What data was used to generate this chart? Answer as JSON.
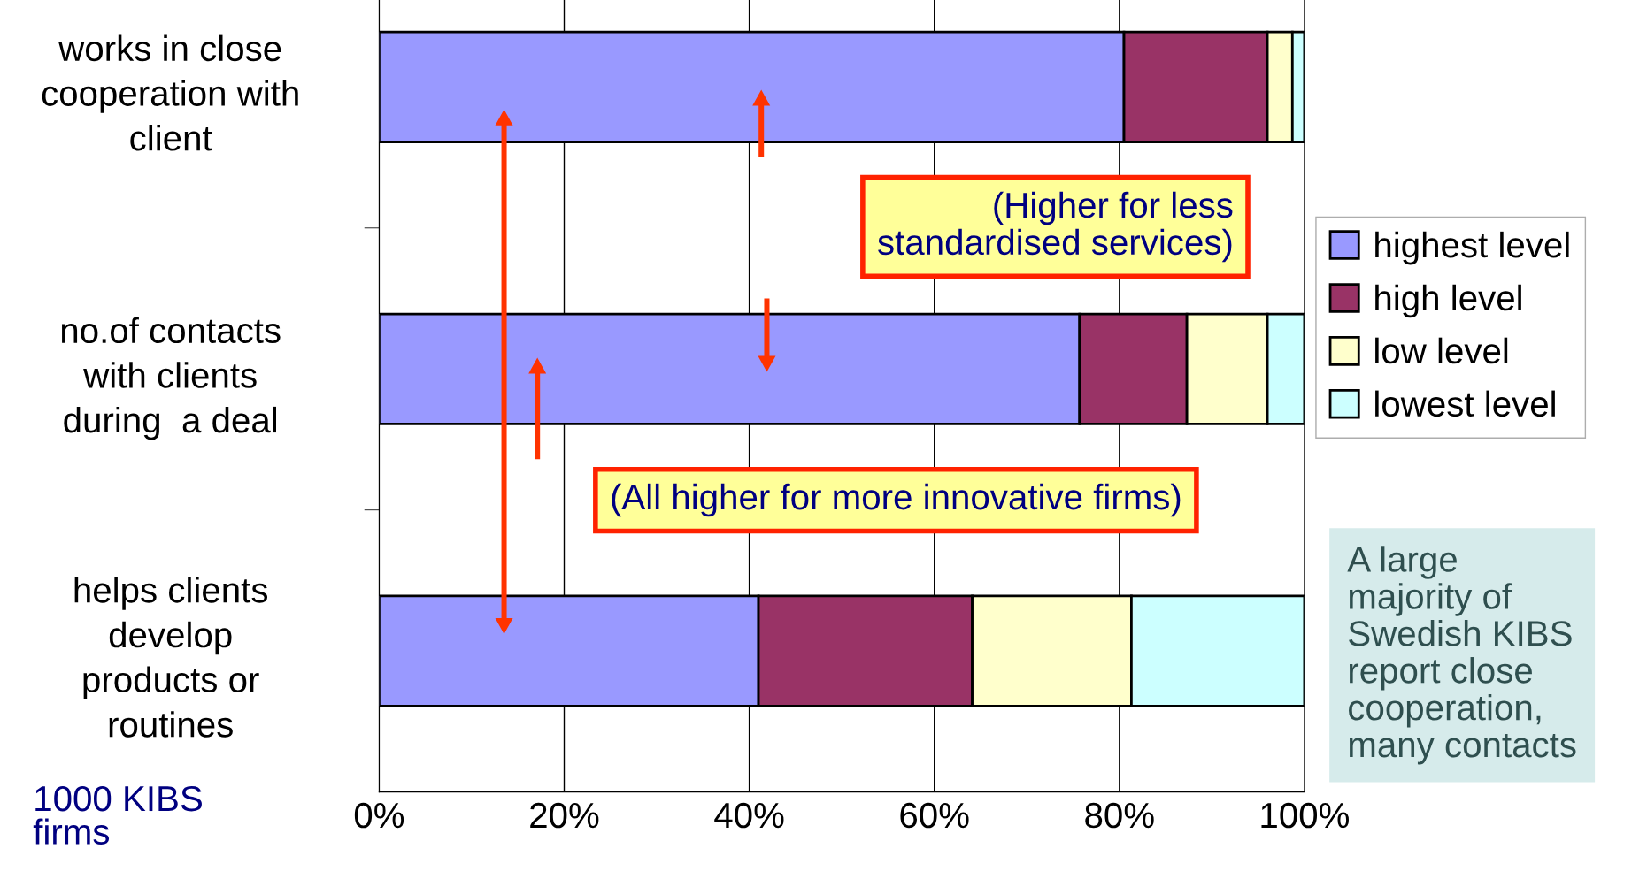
{
  "chart_data": {
    "type": "bar",
    "orientation": "horizontal",
    "stacked": true,
    "categories": [
      "works in close\ncooperation with\nclient",
      "no.of contacts\nwith clients\nduring  a deal",
      "helps clients\ndevelop\nproducts or\nroutines"
    ],
    "series": [
      {
        "name": "highest level",
        "color": "#9999ff",
        "values": [
          80.5,
          75.7,
          41.0
        ]
      },
      {
        "name": "high level",
        "color": "#993366",
        "values": [
          15.5,
          11.6,
          23.1
        ]
      },
      {
        "name": "low level",
        "color": "#ffffcc",
        "values": [
          2.7,
          8.7,
          17.2
        ]
      },
      {
        "name": "lowest level",
        "color": "#ccffff",
        "values": [
          1.3,
          4.0,
          18.7
        ]
      }
    ],
    "xlim": [
      0,
      100
    ],
    "xticks": [
      {
        "value": 0,
        "label": "0%"
      },
      {
        "value": 20,
        "label": "20%"
      },
      {
        "value": 40,
        "label": "40%"
      },
      {
        "value": 60,
        "label": "60%"
      },
      {
        "value": 80,
        "label": "80%"
      },
      {
        "value": 100,
        "label": "100%"
      }
    ],
    "grid": "x",
    "legend": "right",
    "annotations": [
      "(Higher for less\nstandardised services)",
      "(All higher for more innovative firms)",
      "1000 KIBS\nfirms",
      "A large\nmajority of\nSwedish KIBS\nreport close\ncooperation,\nmany contacts"
    ]
  }
}
